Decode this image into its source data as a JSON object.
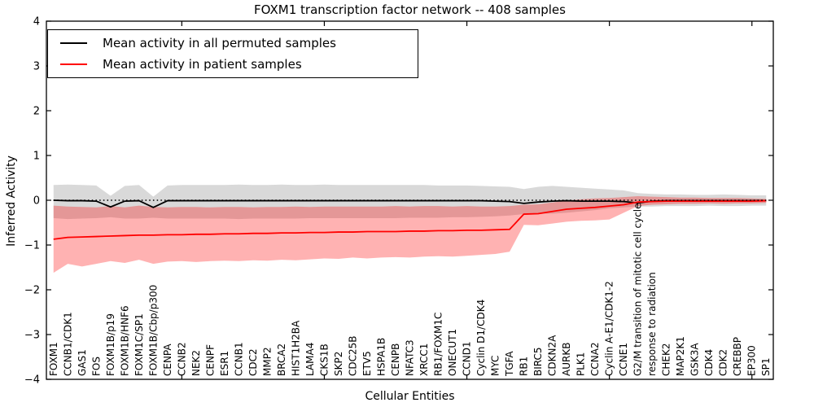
{
  "chart_data": {
    "type": "line",
    "title": "FOXM1 transcription factor network -- 408 samples",
    "xlabel": "Cellular Entities",
    "ylabel": "Inferred Activity",
    "ylim": [
      -4,
      4
    ],
    "grid": false,
    "y_ticks": [
      {
        "value": 4,
        "label": "4"
      },
      {
        "value": 3,
        "label": "3"
      },
      {
        "value": 2,
        "label": "2"
      },
      {
        "value": 1,
        "label": "1"
      },
      {
        "value": 0,
        "label": "0"
      },
      {
        "value": -1,
        "label": "−1"
      },
      {
        "value": -2,
        "label": "−2"
      },
      {
        "value": -3,
        "label": "−3"
      },
      {
        "value": -4,
        "label": "−4"
      }
    ],
    "x_numeric_tick_positions": [
      10,
      20,
      30,
      40,
      50
    ],
    "categories": [
      "FOXM1",
      "CCNB1/CDK1",
      "GAS1",
      "FOS",
      "FOXM1B/p19",
      "FOXM1B/HNF6",
      "FOXM1C/SP1",
      "FOXM1B/Cbp/p300",
      "CENPA",
      "CCNB2",
      "NEK2",
      "CENPF",
      "ESR1",
      "CCNB1",
      "CDC2",
      "MMP2",
      "BRCA2",
      "HIST1H2BA",
      "LAMA4",
      "CKS1B",
      "SKP2",
      "CDC25B",
      "ETV5",
      "HSPA1B",
      "CENPB",
      "NFATC3",
      "XRCC1",
      "RB1/FOXM1C",
      "ONECUT1",
      "CCND1",
      "Cyclin D1/CDK4",
      "MYC",
      "TGFA",
      "RB1",
      "BIRC5",
      "CDKN2A",
      "AURKB",
      "PLK1",
      "CCNA2",
      "Cyclin A-E1/CDK1-2",
      "CCNE1",
      "G2/M transition of mitotic cell cycle",
      "response to radiation",
      "CHEK2",
      "MAP2K1",
      "GSK3A",
      "CDK4",
      "CDK2",
      "CREBBP",
      "EP300",
      "SP1"
    ],
    "zero_line": {
      "y": 0,
      "style": "dotted",
      "color": "#000000"
    },
    "series": [
      {
        "name": "Mean activity in all permuted samples",
        "color": "#000000",
        "band_color": "rgba(0,0,0,0.15)",
        "values": [
          0.0,
          -0.01,
          -0.01,
          -0.02,
          -0.15,
          -0.02,
          -0.01,
          -0.16,
          -0.01,
          -0.01,
          -0.01,
          -0.01,
          -0.01,
          -0.01,
          -0.01,
          -0.01,
          -0.01,
          -0.01,
          -0.01,
          -0.01,
          -0.01,
          -0.01,
          -0.01,
          -0.01,
          -0.01,
          -0.01,
          -0.01,
          -0.01,
          -0.01,
          -0.01,
          -0.01,
          -0.02,
          -0.03,
          -0.07,
          -0.04,
          -0.02,
          -0.01,
          -0.02,
          -0.02,
          -0.02,
          -0.03,
          -0.06,
          -0.02,
          -0.01,
          -0.01,
          -0.01,
          -0.01,
          -0.01,
          -0.01,
          -0.01,
          -0.01
        ],
        "band_upper": [
          0.34,
          0.35,
          0.34,
          0.33,
          0.1,
          0.32,
          0.34,
          0.08,
          0.33,
          0.34,
          0.34,
          0.34,
          0.34,
          0.35,
          0.34,
          0.34,
          0.35,
          0.34,
          0.34,
          0.35,
          0.34,
          0.34,
          0.34,
          0.34,
          0.34,
          0.34,
          0.34,
          0.33,
          0.33,
          0.33,
          0.32,
          0.31,
          0.3,
          0.25,
          0.3,
          0.32,
          0.3,
          0.28,
          0.26,
          0.24,
          0.22,
          0.16,
          0.14,
          0.13,
          0.13,
          0.12,
          0.12,
          0.13,
          0.12,
          0.11,
          0.11
        ],
        "band_lower": [
          -0.4,
          -0.42,
          -0.41,
          -0.4,
          -0.38,
          -0.41,
          -0.41,
          -0.39,
          -0.41,
          -0.41,
          -0.41,
          -0.41,
          -0.41,
          -0.42,
          -0.41,
          -0.41,
          -0.41,
          -0.41,
          -0.4,
          -0.4,
          -0.4,
          -0.4,
          -0.4,
          -0.4,
          -0.4,
          -0.39,
          -0.39,
          -0.39,
          -0.38,
          -0.38,
          -0.37,
          -0.36,
          -0.34,
          -0.31,
          -0.3,
          -0.3,
          -0.28,
          -0.25,
          -0.22,
          -0.18,
          -0.16,
          -0.14,
          -0.14,
          -0.13,
          -0.13,
          -0.13,
          -0.12,
          -0.13,
          -0.13,
          -0.12,
          -0.12
        ]
      },
      {
        "name": "Mean activity in patient samples",
        "color": "#ff0000",
        "band_color": "rgba(255,0,0,0.30)",
        "values": [
          -0.87,
          -0.83,
          -0.82,
          -0.81,
          -0.8,
          -0.79,
          -0.78,
          -0.78,
          -0.77,
          -0.77,
          -0.76,
          -0.76,
          -0.75,
          -0.75,
          -0.74,
          -0.74,
          -0.73,
          -0.73,
          -0.72,
          -0.72,
          -0.71,
          -0.71,
          -0.7,
          -0.7,
          -0.7,
          -0.69,
          -0.69,
          -0.68,
          -0.68,
          -0.67,
          -0.67,
          -0.66,
          -0.65,
          -0.31,
          -0.3,
          -0.25,
          -0.2,
          -0.18,
          -0.16,
          -0.13,
          -0.1,
          -0.04,
          -0.03,
          -0.02,
          -0.02,
          -0.02,
          -0.02,
          -0.02,
          -0.02,
          -0.02,
          -0.01
        ],
        "band_upper": [
          -0.12,
          -0.14,
          -0.15,
          -0.16,
          -0.13,
          -0.16,
          -0.12,
          -0.15,
          -0.16,
          -0.15,
          -0.15,
          -0.16,
          -0.15,
          -0.15,
          -0.16,
          -0.15,
          -0.15,
          -0.14,
          -0.15,
          -0.14,
          -0.14,
          -0.14,
          -0.14,
          -0.14,
          -0.13,
          -0.14,
          -0.13,
          -0.13,
          -0.14,
          -0.13,
          -0.14,
          -0.14,
          -0.13,
          -0.1,
          -0.09,
          -0.05,
          -0.01,
          0.02,
          0.04,
          0.05,
          0.07,
          0.09,
          0.08,
          0.07,
          0.06,
          0.06,
          0.05,
          0.05,
          0.05,
          0.04,
          0.03
        ],
        "band_lower": [
          -1.62,
          -1.42,
          -1.48,
          -1.42,
          -1.36,
          -1.4,
          -1.33,
          -1.42,
          -1.37,
          -1.36,
          -1.38,
          -1.36,
          -1.35,
          -1.36,
          -1.34,
          -1.35,
          -1.33,
          -1.34,
          -1.32,
          -1.3,
          -1.31,
          -1.28,
          -1.3,
          -1.28,
          -1.27,
          -1.28,
          -1.26,
          -1.25,
          -1.26,
          -1.24,
          -1.22,
          -1.2,
          -1.15,
          -0.55,
          -0.56,
          -0.52,
          -0.48,
          -0.46,
          -0.45,
          -0.43,
          -0.28,
          -0.13,
          -0.1,
          -0.09,
          -0.08,
          -0.08,
          -0.07,
          -0.08,
          -0.07,
          -0.07,
          -0.06
        ]
      }
    ],
    "legend": {
      "position": "upper left",
      "entries": [
        {
          "label": "Mean activity in all permuted samples",
          "color": "#000000"
        },
        {
          "label": "Mean activity in patient samples",
          "color": "#ff0000"
        }
      ]
    }
  }
}
